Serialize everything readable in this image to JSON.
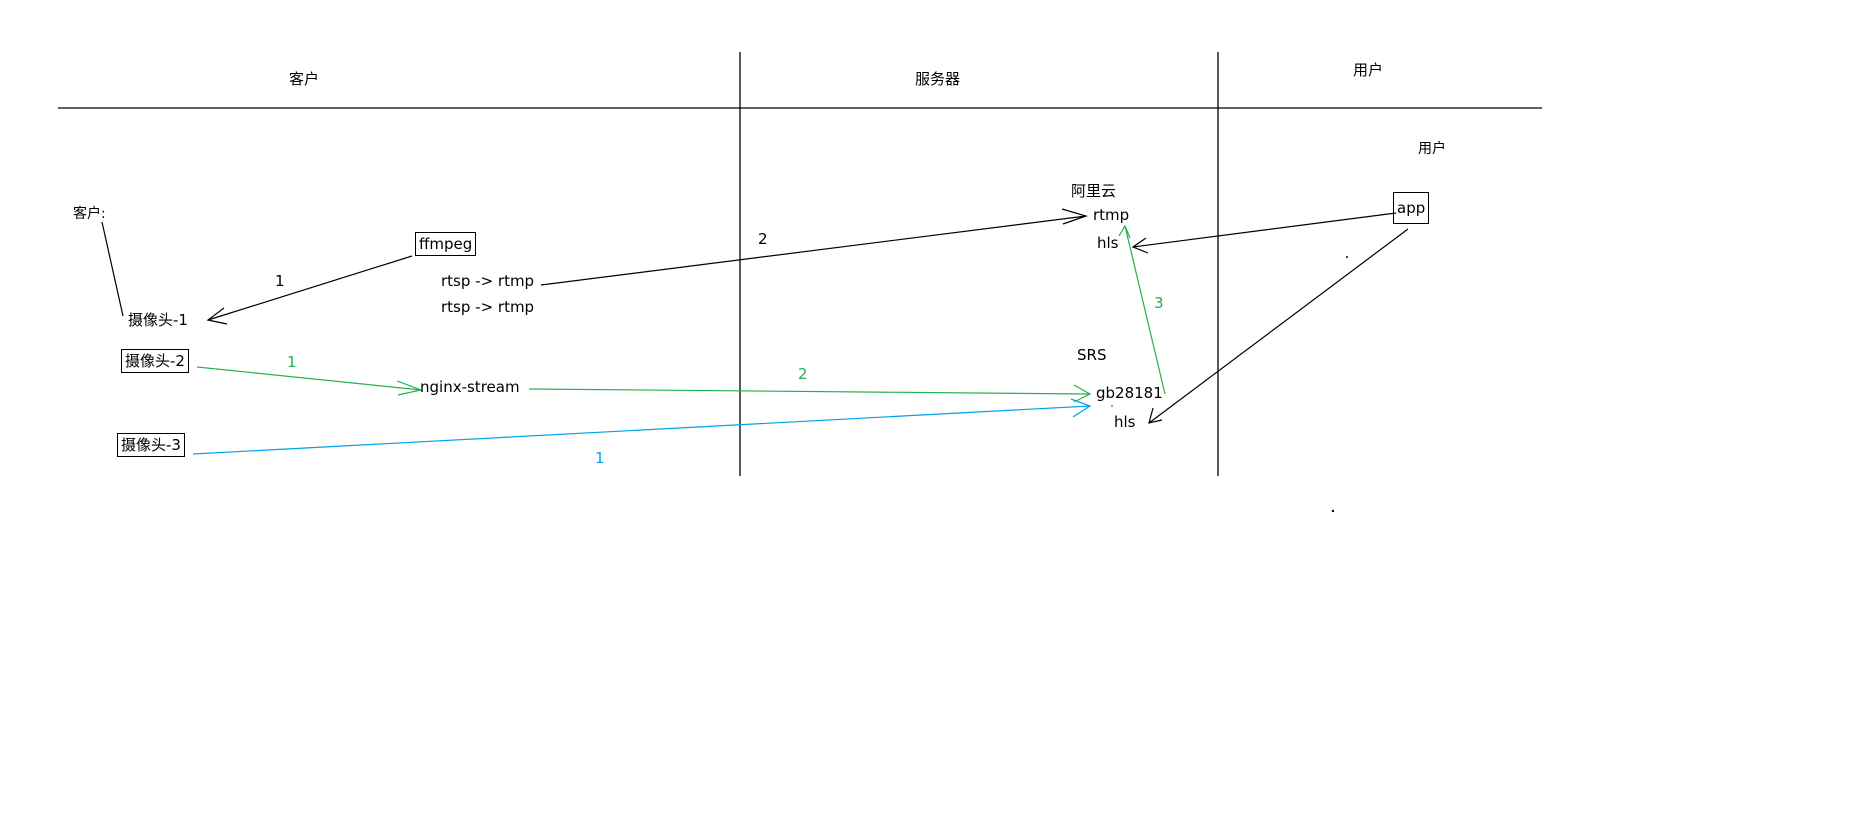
{
  "colors": {
    "ink": "#000000",
    "green": "#22b14c",
    "blue": "#00a2e8"
  },
  "columns": {
    "customer": "客户",
    "server": "服务器",
    "user": "用户"
  },
  "customer": {
    "label": "客户:",
    "camera1": "摄像头-1",
    "camera2": "摄像头-2",
    "camera3": "摄像头-3",
    "ffmpeg": "ffmpeg",
    "rtsp_rtmp_1": "rtsp -> rtmp",
    "rtsp_rtmp_2": "rtsp -> rtmp",
    "nginx_stream": "nginx-stream"
  },
  "server": {
    "aliyun": "阿里云",
    "rtmp": "rtmp",
    "hls": "hls",
    "srs": "SRS",
    "gb28181": "gb28181",
    "srs_hls": "hls"
  },
  "user": {
    "label": "用户",
    "app": "app"
  },
  "steps": {
    "black_1": "1",
    "black_2": "2",
    "green_1": "1",
    "green_2": "2",
    "green_3": "3",
    "blue_1": "1"
  }
}
